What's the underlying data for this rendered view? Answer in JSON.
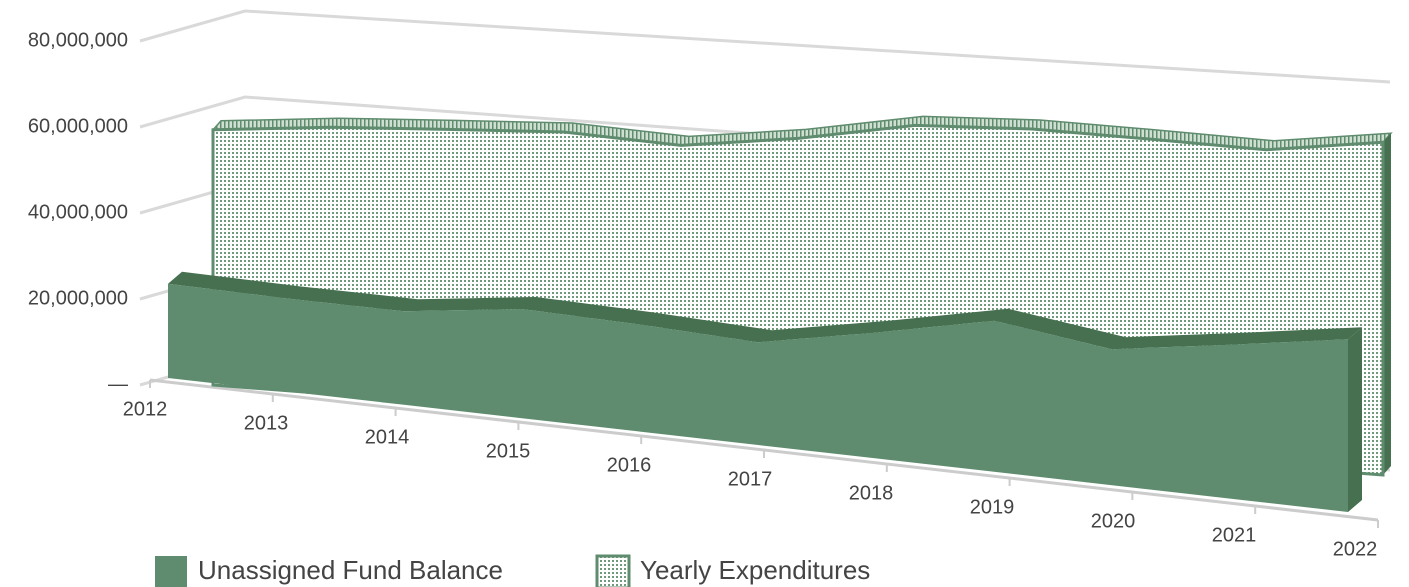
{
  "chart_data": {
    "type": "area3d",
    "categories": [
      "2012",
      "2013",
      "2014",
      "2015",
      "2016",
      "2017",
      "2018",
      "2019",
      "2020",
      "2021",
      "2022"
    ],
    "series": [
      {
        "name": "Unassigned Fund Balance",
        "color": "#5f8c6e",
        "values": [
          23000000,
          20000000,
          18000000,
          19000000,
          17000000,
          15000000,
          17000000,
          19000000,
          16000000,
          17000000,
          18000000
        ]
      },
      {
        "name": "Yearly Expenditures",
        "color": "#5f8c6e",
        "values": [
          58000000,
          58000000,
          57000000,
          56000000,
          53000000,
          54000000,
          56000000,
          55000000,
          53000000,
          51000000,
          52000000
        ]
      }
    ],
    "ylim": [
      0,
      80000000
    ],
    "yticks": [
      {
        "value": 0,
        "label": "—"
      },
      {
        "value": 20000000,
        "label": "20,000,000"
      },
      {
        "value": 40000000,
        "label": "40,000,000"
      },
      {
        "value": 60000000,
        "label": "60,000,000"
      },
      {
        "value": 80000000,
        "label": "80,000,000"
      }
    ],
    "grid": true,
    "legend": "bottom-left"
  }
}
